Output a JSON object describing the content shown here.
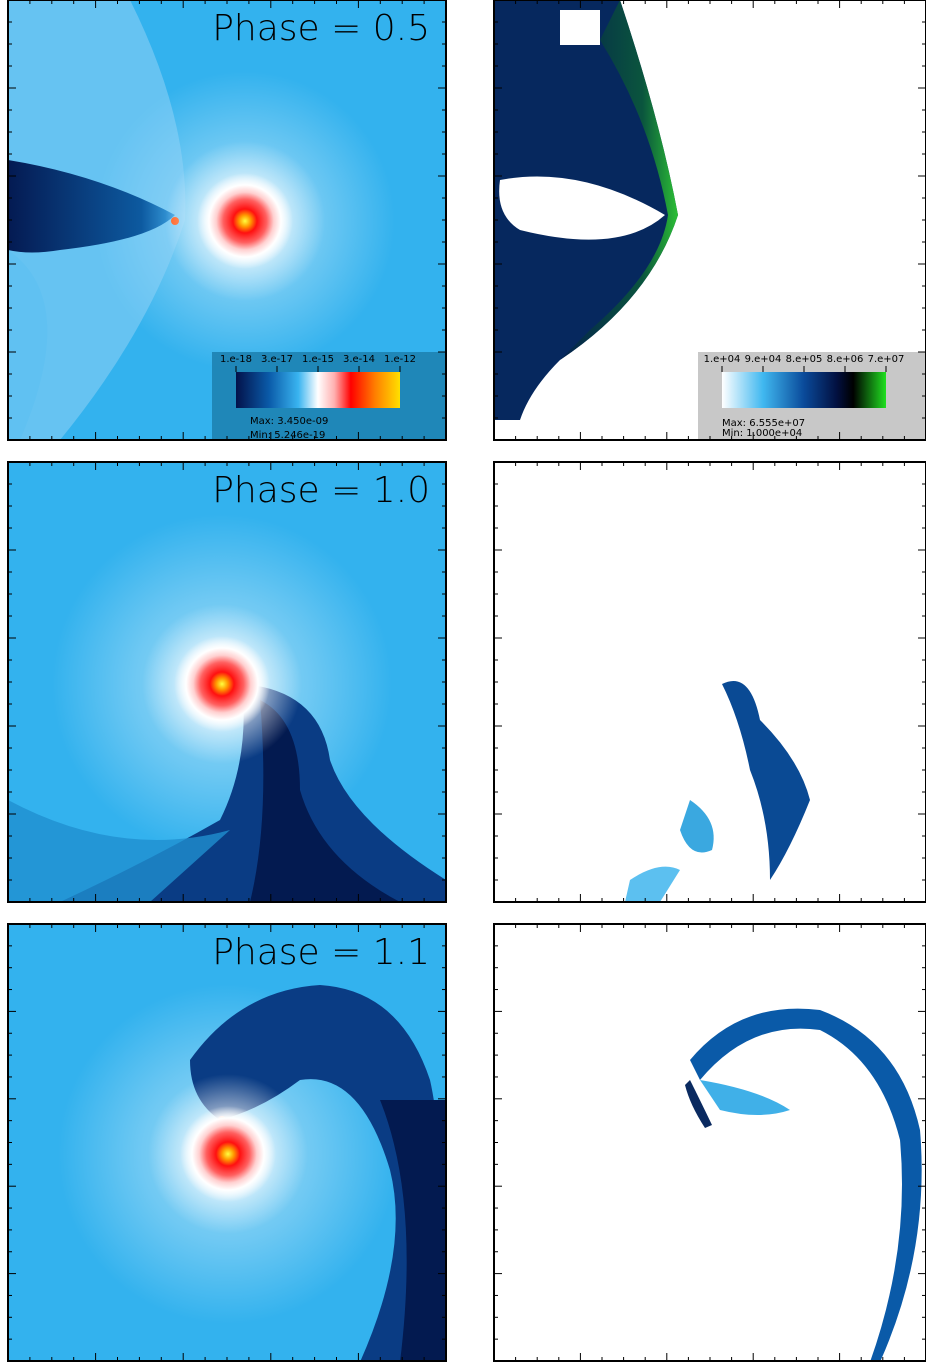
{
  "panels": [
    {
      "phase_label": "Phase = 0.5"
    },
    {
      "phase_label": "Phase = 1.0"
    },
    {
      "phase_label": "Phase = 1.1"
    }
  ],
  "density_colorbar": {
    "tick_labels": [
      "1.e-18",
      "3.e-17",
      "1.e-15",
      "3.e-14",
      "1.e-12"
    ],
    "max": "Max: 3.450e-09",
    "min": "Min: 5.246e-19"
  },
  "temperature_colorbar": {
    "tick_labels": [
      "1.e+04",
      "9.e+04",
      "8.e+05",
      "8.e+06",
      "7.e+07"
    ],
    "max": "Max: 6.555e+07",
    "min": "Min: 1.000e+04"
  }
}
